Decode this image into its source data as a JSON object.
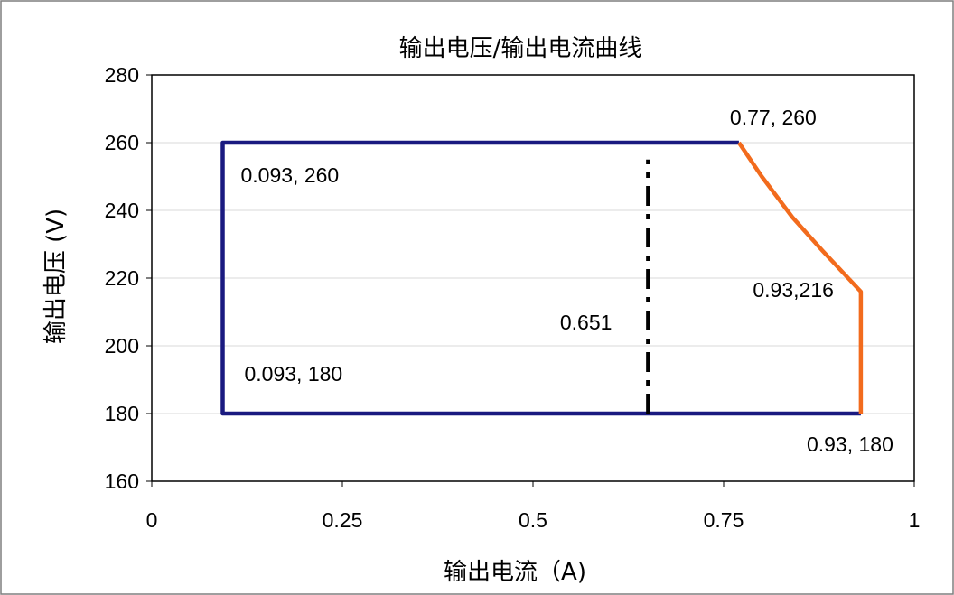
{
  "chart_data": {
    "type": "line",
    "title": "输出电压/输出电流曲线",
    "xlabel": "输出电流（A)",
    "ylabel": "输出电压 (V)",
    "xlim": [
      0,
      1
    ],
    "ylim": [
      160,
      280
    ],
    "x_ticks": [
      0,
      0.25,
      0.5,
      0.75,
      1
    ],
    "x_tick_labels": [
      "0",
      "0.25",
      "0.5",
      "0.75",
      "1"
    ],
    "y_ticks": [
      160,
      180,
      200,
      220,
      240,
      260,
      280
    ],
    "y_tick_labels": [
      "160",
      "180",
      "200",
      "220",
      "240",
      "260",
      "280"
    ],
    "grid": "horizontal",
    "legend": "none",
    "series": [
      {
        "color": "#1a1a80",
        "style": "solid",
        "points": [
          [
            0.93,
            180
          ],
          [
            0.093,
            180
          ],
          [
            0.093,
            260
          ],
          [
            0.77,
            260
          ]
        ]
      },
      {
        "color": "#f26b1d",
        "style": "solid",
        "points": [
          [
            0.77,
            260
          ],
          [
            0.8,
            250
          ],
          [
            0.84,
            238
          ],
          [
            0.88,
            228
          ],
          [
            0.93,
            216
          ],
          [
            0.93,
            180
          ]
        ]
      },
      {
        "color": "#000000",
        "style": "dash-dot",
        "points": [
          [
            0.651,
            180
          ],
          [
            0.651,
            255
          ]
        ]
      }
    ],
    "annotations": [
      {
        "text": "0.77, 260",
        "x": 0.77,
        "y": 260
      },
      {
        "text": "0.093, 260",
        "x": 0.093,
        "y": 260
      },
      {
        "text": "0.651",
        "x": 0.651,
        "y": 207
      },
      {
        "text": "0.93,216",
        "x": 0.93,
        "y": 216
      },
      {
        "text": "0.093, 180",
        "x": 0.093,
        "y": 180
      },
      {
        "text": "0.93, 180",
        "x": 0.93,
        "y": 180
      }
    ]
  }
}
